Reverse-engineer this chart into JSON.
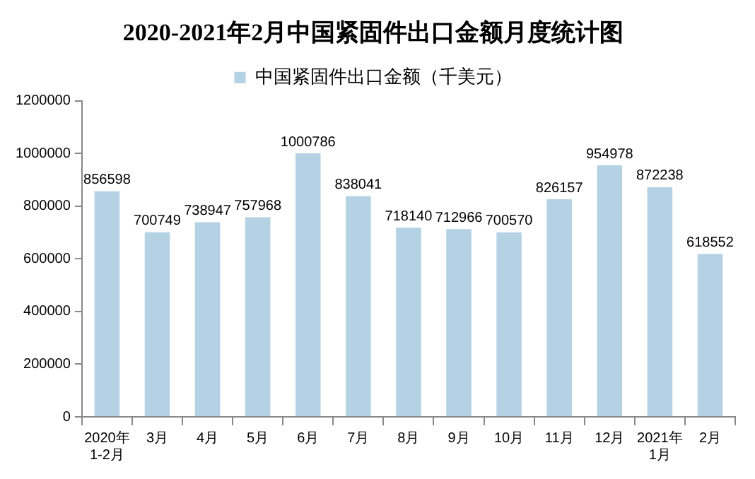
{
  "chart_data": {
    "type": "bar",
    "title": "2020-2021年2月中国紧固件出口金额月度统计图",
    "categories": [
      "2020年\n1-2月",
      "3月",
      "4月",
      "5月",
      "6月",
      "7月",
      "8月",
      "9月",
      "10月",
      "11月",
      "12月",
      "2021年\n1月",
      "2月"
    ],
    "series": [
      {
        "name": "中国紧固件出口金额（千美元）",
        "color": "#b4d2e4",
        "values": [
          856598,
          700749,
          738947,
          757968,
          1000786,
          838041,
          718140,
          712966,
          700570,
          826157,
          954978,
          872238,
          618552
        ]
      }
    ],
    "ylim": [
      0,
      1200000
    ],
    "yticks": [
      0,
      200000,
      400000,
      600000,
      800000,
      1000000,
      1200000
    ],
    "grid": false,
    "legend": "top",
    "data_labels": true
  }
}
